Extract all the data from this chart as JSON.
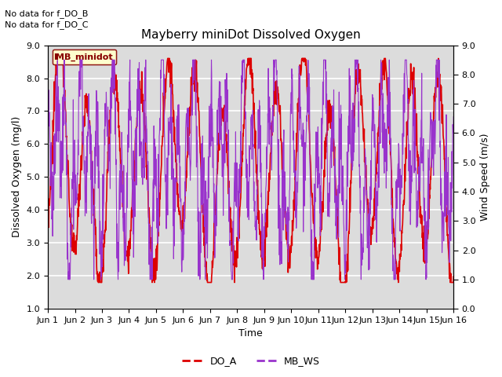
{
  "title": "Mayberry miniDot Dissolved Oxygen",
  "xlabel": "Time",
  "ylabel_left": "Dissolved Oxygen (mg/l)",
  "ylabel_right": "Wind Speed (m/s)",
  "ylim_left": [
    1.0,
    9.0
  ],
  "ylim_right": [
    0.0,
    9.0
  ],
  "yticks_left": [
    1.0,
    2.0,
    3.0,
    4.0,
    5.0,
    6.0,
    7.0,
    8.0,
    9.0
  ],
  "yticks_right": [
    0.0,
    1.0,
    2.0,
    3.0,
    4.0,
    5.0,
    6.0,
    7.0,
    8.0,
    9.0
  ],
  "ytick_labels_right": [
    "0.0",
    "1.0",
    "2.0",
    "3.0",
    "4.0",
    "5.0",
    "6.0",
    "7.0",
    "8.0",
    "9.0"
  ],
  "xtick_labels": [
    "Jun 1",
    "Jun 2",
    "Jun 3",
    "Jun 4",
    "Jun 5",
    "Jun 6",
    "Jun 7",
    "Jun 8",
    "Jun 9",
    "Jun 10",
    "Jun 11",
    "Jun 12",
    "Jun 13",
    "Jun 14",
    "Jun 15",
    "Jun 16"
  ],
  "annotations": [
    "No data for f_DO_B",
    "No data for f_DO_C"
  ],
  "legend_label": "MB_minidot",
  "line_do_color": "#dd0000",
  "line_ws_color": "#9933cc",
  "legend_do": "DO_A",
  "legend_ws": "MB_WS",
  "background_color": "#dcdcdc",
  "grid_color": "#ffffff",
  "fig_facecolor": "#ffffff"
}
